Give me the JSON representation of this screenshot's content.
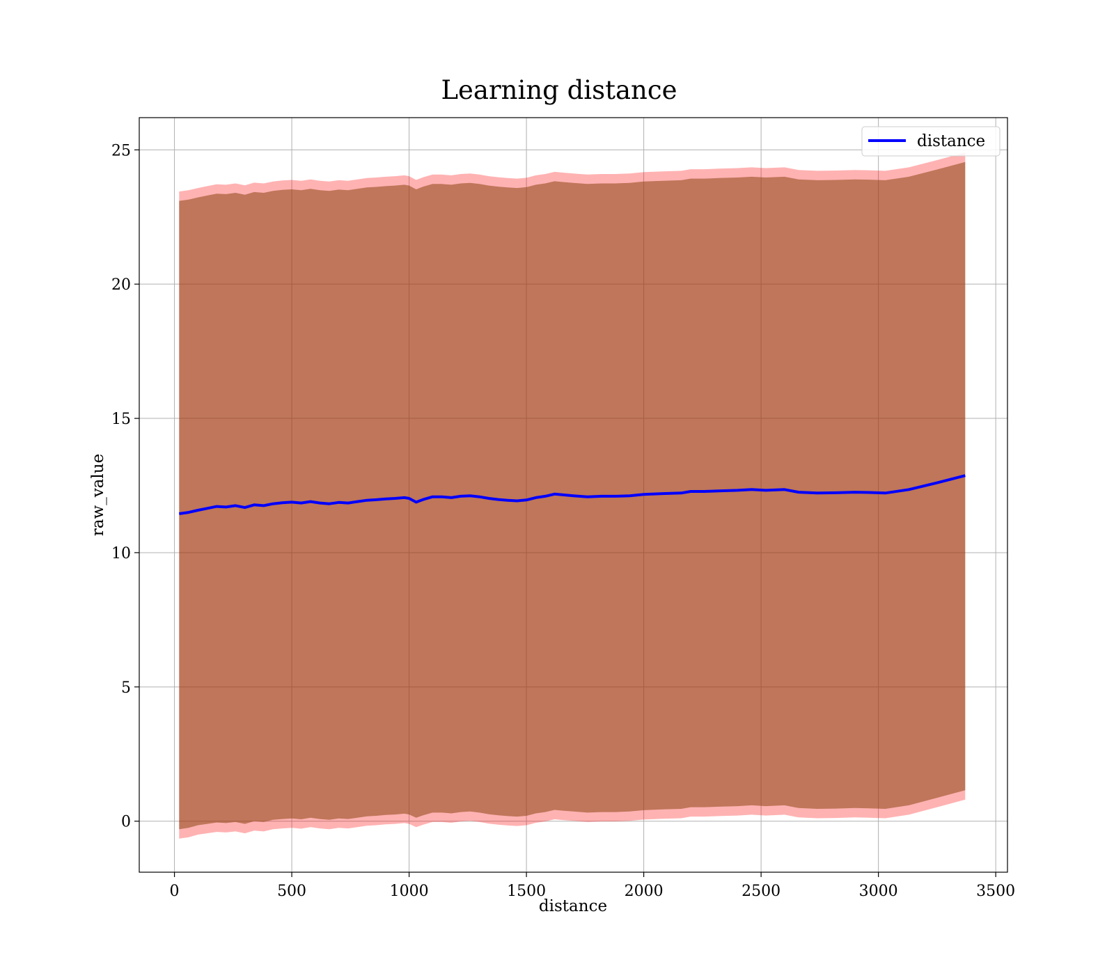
{
  "chart_data": {
    "type": "line",
    "title": "Learning distance",
    "xlabel": "distance",
    "ylabel": "raw_value",
    "xlim": [
      -150,
      3550
    ],
    "ylim": [
      -1.9,
      26.2
    ],
    "xticks": [
      0,
      500,
      1000,
      1500,
      2000,
      2500,
      3000,
      3500
    ],
    "yticks": [
      0,
      5,
      10,
      15,
      20,
      25
    ],
    "grid": true,
    "legend": {
      "position": "top-right",
      "entries": [
        "distance"
      ]
    },
    "colors": {
      "line": "#0000ff",
      "band_fill": "#ff0000",
      "inner_fill": "#8b4513",
      "grid": "#b0b0b0",
      "axes": "#000000"
    },
    "series": [
      {
        "name": "distance",
        "x": [
          20,
          60,
          100,
          140,
          180,
          220,
          260,
          300,
          340,
          380,
          420,
          460,
          500,
          540,
          580,
          620,
          660,
          700,
          740,
          780,
          820,
          860,
          900,
          940,
          980,
          1000,
          1030,
          1060,
          1100,
          1140,
          1180,
          1220,
          1260,
          1300,
          1340,
          1380,
          1420,
          1460,
          1500,
          1540,
          1580,
          1620,
          1660,
          1700,
          1760,
          1820,
          1880,
          1940,
          2000,
          2080,
          2160,
          2200,
          2260,
          2320,
          2400,
          2460,
          2520,
          2600,
          2660,
          2740,
          2820,
          2900,
          2960,
          3030,
          3130,
          3250,
          3370
        ],
        "y": [
          11.45,
          11.5,
          11.58,
          11.65,
          11.72,
          11.7,
          11.75,
          11.68,
          11.78,
          11.75,
          11.82,
          11.86,
          11.88,
          11.85,
          11.9,
          11.85,
          11.82,
          11.87,
          11.85,
          11.9,
          11.95,
          11.97,
          12.0,
          12.02,
          12.05,
          12.02,
          11.88,
          11.98,
          12.08,
          12.08,
          12.05,
          12.1,
          12.12,
          12.08,
          12.02,
          11.98,
          11.95,
          11.93,
          11.96,
          12.05,
          12.1,
          12.18,
          12.15,
          12.12,
          12.08,
          12.1,
          12.1,
          12.12,
          12.17,
          12.2,
          12.22,
          12.28,
          12.28,
          12.3,
          12.32,
          12.35,
          12.32,
          12.35,
          12.25,
          12.22,
          12.23,
          12.25,
          12.24,
          12.22,
          12.35,
          12.6,
          12.87
        ],
        "band_outer_lower": [
          -0.65,
          -0.6,
          -0.5,
          -0.45,
          -0.4,
          -0.42,
          -0.38,
          -0.45,
          -0.35,
          -0.38,
          -0.3,
          -0.27,
          -0.25,
          -0.28,
          -0.22,
          -0.27,
          -0.3,
          -0.25,
          -0.27,
          -0.22,
          -0.17,
          -0.15,
          -0.12,
          -0.1,
          -0.07,
          -0.1,
          -0.22,
          -0.13,
          -0.03,
          -0.03,
          -0.06,
          -0.01,
          0.01,
          -0.03,
          -0.09,
          -0.13,
          -0.16,
          -0.18,
          -0.15,
          -0.06,
          -0.01,
          0.07,
          0.04,
          0.01,
          -0.03,
          -0.01,
          -0.01,
          0.01,
          0.06,
          0.09,
          0.11,
          0.17,
          0.17,
          0.19,
          0.21,
          0.24,
          0.21,
          0.24,
          0.14,
          0.11,
          0.12,
          0.14,
          0.13,
          0.11,
          0.24,
          0.52,
          0.8
        ],
        "band_outer_upper": [
          23.45,
          23.5,
          23.58,
          23.65,
          23.72,
          23.7,
          23.75,
          23.68,
          23.78,
          23.75,
          23.82,
          23.86,
          23.88,
          23.85,
          23.9,
          23.85,
          23.82,
          23.87,
          23.85,
          23.9,
          23.95,
          23.97,
          24.0,
          24.02,
          24.05,
          24.02,
          23.88,
          23.98,
          24.08,
          24.08,
          24.05,
          24.1,
          24.12,
          24.08,
          24.02,
          23.98,
          23.95,
          23.93,
          23.96,
          24.05,
          24.1,
          24.18,
          24.15,
          24.12,
          24.08,
          24.1,
          24.1,
          24.12,
          24.17,
          24.2,
          24.22,
          24.28,
          24.28,
          24.3,
          24.32,
          24.35,
          24.32,
          24.35,
          24.25,
          24.22,
          24.23,
          24.25,
          24.24,
          24.22,
          24.35,
          24.62,
          24.9
        ],
        "band_inner_lower": [
          -0.3,
          -0.25,
          -0.15,
          -0.1,
          -0.05,
          -0.07,
          -0.03,
          -0.1,
          0.0,
          -0.03,
          0.05,
          0.08,
          0.1,
          0.07,
          0.13,
          0.08,
          0.05,
          0.1,
          0.08,
          0.13,
          0.18,
          0.2,
          0.23,
          0.25,
          0.28,
          0.25,
          0.13,
          0.22,
          0.32,
          0.32,
          0.29,
          0.34,
          0.36,
          0.32,
          0.26,
          0.22,
          0.19,
          0.17,
          0.2,
          0.29,
          0.34,
          0.42,
          0.39,
          0.36,
          0.32,
          0.34,
          0.34,
          0.36,
          0.41,
          0.44,
          0.46,
          0.52,
          0.52,
          0.54,
          0.56,
          0.59,
          0.56,
          0.59,
          0.49,
          0.46,
          0.47,
          0.49,
          0.48,
          0.46,
          0.59,
          0.87,
          1.15
        ],
        "band_inner_upper": [
          23.1,
          23.15,
          23.23,
          23.3,
          23.37,
          23.35,
          23.4,
          23.33,
          23.43,
          23.4,
          23.47,
          23.51,
          23.53,
          23.5,
          23.55,
          23.5,
          23.47,
          23.52,
          23.5,
          23.55,
          23.6,
          23.62,
          23.65,
          23.67,
          23.7,
          23.67,
          23.53,
          23.63,
          23.73,
          23.73,
          23.7,
          23.75,
          23.77,
          23.73,
          23.67,
          23.63,
          23.6,
          23.58,
          23.61,
          23.7,
          23.75,
          23.83,
          23.8,
          23.77,
          23.73,
          23.75,
          23.75,
          23.77,
          23.82,
          23.85,
          23.87,
          23.93,
          23.93,
          23.95,
          23.97,
          24.0,
          23.97,
          24.0,
          23.9,
          23.87,
          23.88,
          23.9,
          23.89,
          23.87,
          24.0,
          24.27,
          24.55
        ]
      }
    ]
  }
}
